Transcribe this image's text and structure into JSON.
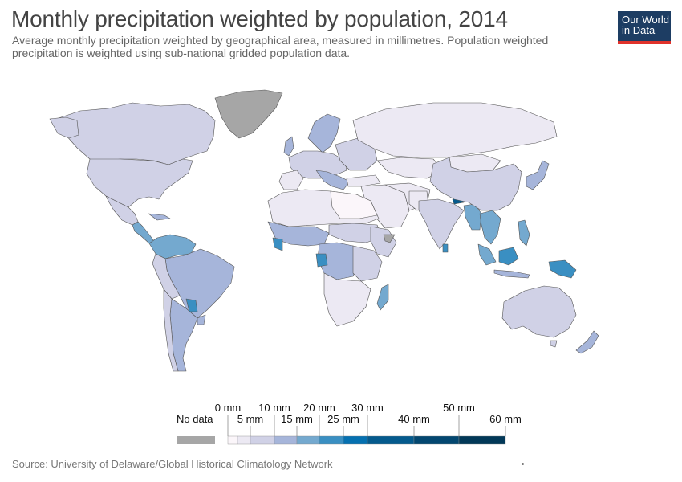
{
  "title": "Monthly precipitation weighted by population, 2014",
  "subtitle": "Average monthly precipitation weighted by geographical area, measured in millimetres. Population weighted precipitation is weighted using sub-national gridded population data.",
  "logo": {
    "line1": "Our World",
    "line2": "in Data"
  },
  "source": "Source: University of Delaware/Global Historical Climatology Network",
  "colors": {
    "no_data": "#a6a6a6",
    "bins": [
      "#fbf6fa",
      "#ece9f3",
      "#d0d1e6",
      "#a6b5da",
      "#74a9cf",
      "#3a8fc2",
      "#0570b0",
      "#045a8d",
      "#034770",
      "#023858"
    ],
    "border": "#555555",
    "ocean": "#ffffff"
  },
  "legend": {
    "no_data_label": "No data",
    "upper_labels": [
      "0 mm",
      "10 mm",
      "20 mm",
      "30 mm",
      "50 mm"
    ],
    "lower_labels": [
      "5 mm",
      "15 mm",
      "25 mm",
      "40 mm",
      "60 mm"
    ]
  }
}
